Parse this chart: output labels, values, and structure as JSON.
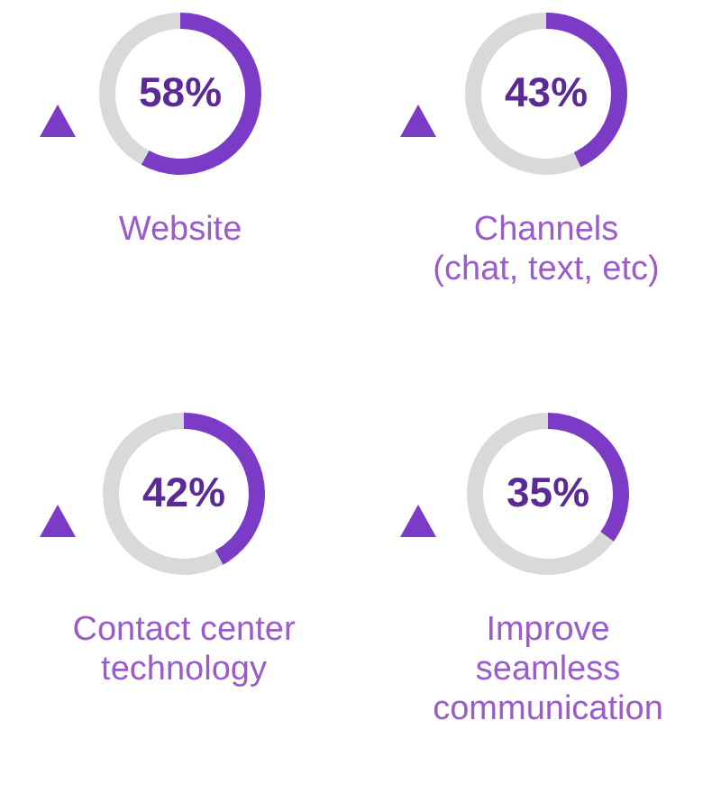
{
  "chart_data": [
    {
      "type": "donut",
      "title": "Website",
      "categories": [
        null,
        null
      ],
      "values": [
        58,
        42
      ],
      "colors": [
        "#7c3bc6",
        "#d9d9d9"
      ],
      "value_labels": [
        "58%",
        null
      ]
    },
    {
      "type": "donut",
      "title": "Channels\n(chat, text, etc)",
      "categories": [
        null,
        null
      ],
      "values": [
        43,
        57
      ],
      "colors": [
        "#7c3bc6",
        "#d9d9d9"
      ],
      "value_labels": [
        "43%",
        null
      ]
    },
    {
      "type": "donut",
      "title": "Contact center\ntechnology",
      "categories": [
        null,
        null
      ],
      "values": [
        42,
        58
      ],
      "colors": [
        "#7c3bc6",
        "#d9d9d9"
      ],
      "value_labels": [
        "42%",
        null
      ]
    },
    {
      "type": "donut",
      "title": "Improve\nseamless\ncommunication",
      "categories": [
        null,
        null
      ],
      "values": [
        35,
        65
      ],
      "colors": [
        "#7c3bc6",
        "#d9d9d9"
      ],
      "value_labels": [
        "35%",
        null
      ]
    }
  ]
}
